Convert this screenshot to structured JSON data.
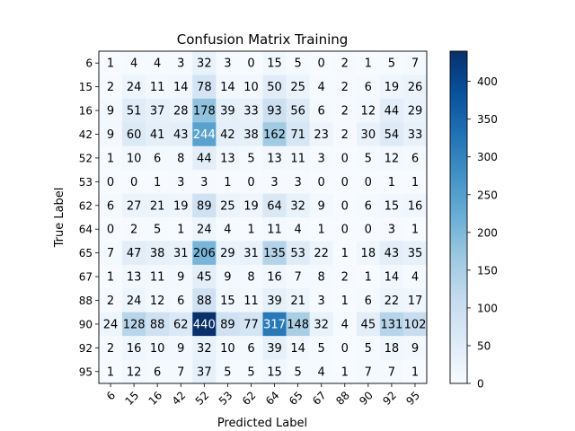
{
  "chart_data": {
    "type": "heatmap",
    "title": "Confusion Matrix Training",
    "xlabel": "Predicted Label",
    "ylabel": "True Label",
    "x_categories": [
      "6",
      "15",
      "16",
      "42",
      "52",
      "53",
      "62",
      "64",
      "65",
      "67",
      "88",
      "90",
      "92",
      "95"
    ],
    "y_categories": [
      "6",
      "15",
      "16",
      "42",
      "52",
      "53",
      "62",
      "64",
      "65",
      "67",
      "88",
      "90",
      "92",
      "95"
    ],
    "values": [
      [
        1,
        4,
        4,
        3,
        32,
        3,
        0,
        15,
        5,
        0,
        2,
        1,
        5,
        7
      ],
      [
        2,
        24,
        11,
        14,
        78,
        14,
        10,
        50,
        25,
        4,
        2,
        6,
        19,
        26
      ],
      [
        9,
        51,
        37,
        28,
        178,
        39,
        33,
        93,
        56,
        6,
        2,
        12,
        44,
        29
      ],
      [
        9,
        60,
        41,
        43,
        244,
        42,
        38,
        162,
        71,
        23,
        2,
        30,
        54,
        33
      ],
      [
        1,
        10,
        6,
        8,
        44,
        13,
        5,
        13,
        11,
        3,
        0,
        5,
        12,
        6
      ],
      [
        0,
        0,
        1,
        3,
        3,
        1,
        0,
        3,
        3,
        0,
        0,
        0,
        1,
        1
      ],
      [
        6,
        27,
        21,
        19,
        89,
        25,
        19,
        64,
        32,
        9,
        0,
        6,
        15,
        16
      ],
      [
        0,
        2,
        5,
        1,
        24,
        4,
        1,
        11,
        4,
        1,
        0,
        0,
        3,
        1
      ],
      [
        7,
        47,
        38,
        31,
        206,
        29,
        31,
        135,
        53,
        22,
        1,
        18,
        43,
        35
      ],
      [
        1,
        13,
        11,
        9,
        45,
        9,
        8,
        16,
        7,
        8,
        2,
        1,
        14,
        4
      ],
      [
        2,
        24,
        12,
        6,
        88,
        15,
        11,
        39,
        21,
        3,
        1,
        6,
        22,
        17
      ],
      [
        24,
        128,
        88,
        62,
        440,
        89,
        77,
        317,
        148,
        32,
        4,
        45,
        131,
        102
      ],
      [
        2,
        16,
        10,
        9,
        32,
        10,
        6,
        39,
        14,
        5,
        0,
        5,
        18,
        9
      ],
      [
        1,
        12,
        6,
        7,
        37,
        5,
        5,
        15,
        5,
        4,
        1,
        7,
        7,
        1
      ]
    ],
    "colormap": "Blues",
    "colorbar": {
      "range": [
        0,
        440
      ],
      "ticks": [
        0,
        50,
        100,
        150,
        200,
        250,
        300,
        350,
        400
      ]
    },
    "x_tick_rotation_deg": 45,
    "grid": false
  }
}
